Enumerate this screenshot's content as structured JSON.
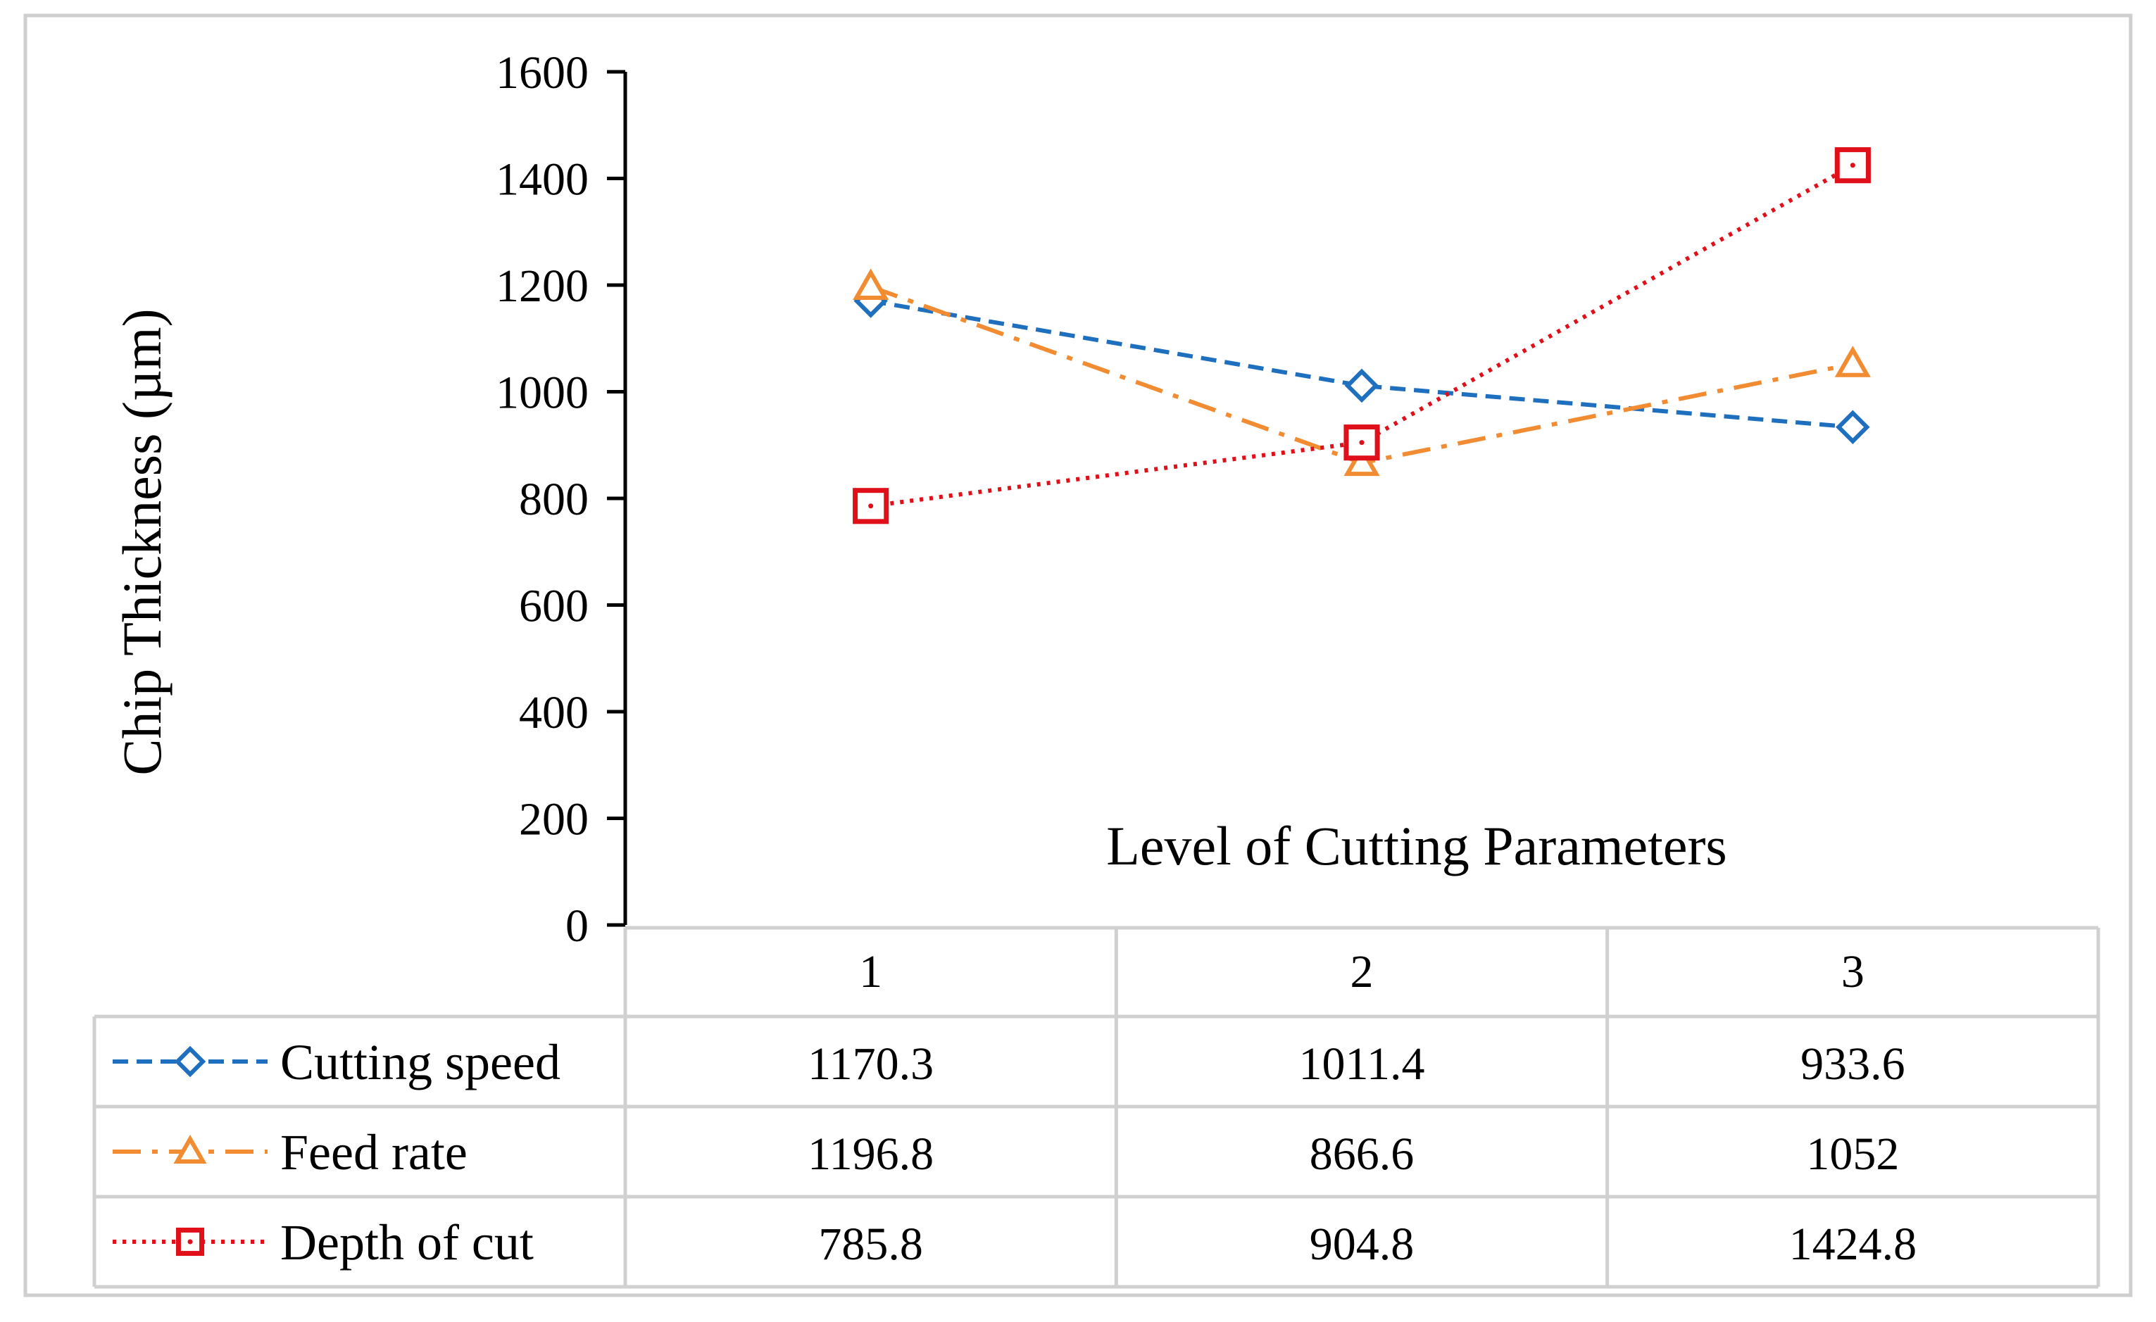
{
  "chart_data": {
    "type": "line",
    "title": "",
    "xlabel": "Level of Cutting Parameters",
    "ylabel": "Chip Thickness (µm)",
    "ylim": [
      0,
      1600
    ],
    "yticks": [
      "0",
      "200",
      "400",
      "600",
      "800",
      "1000",
      "1200",
      "1400",
      "1600"
    ],
    "categories": [
      "1",
      "2",
      "3"
    ],
    "grid": false,
    "legend": "data-table-left",
    "series": [
      {
        "name": "Cutting speed",
        "values": [
          1170.3,
          1011.4,
          933.6
        ],
        "labels": [
          "1170.3",
          "1011.4",
          "933.6"
        ],
        "color": "#1F6FBF",
        "marker": "diamond",
        "dash": "dashed"
      },
      {
        "name": "Feed rate",
        "values": [
          1196.8,
          866.6,
          1052
        ],
        "labels": [
          "1196.8",
          "866.6",
          "1052"
        ],
        "color": "#F28C33",
        "marker": "triangle",
        "dash": "dash-dot"
      },
      {
        "name": "Depth of cut",
        "values": [
          785.8,
          904.8,
          1424.8
        ],
        "labels": [
          "785.8",
          "904.8",
          "1424.8"
        ],
        "color": "#E0101A",
        "marker": "square",
        "dash": "dotted"
      }
    ]
  }
}
